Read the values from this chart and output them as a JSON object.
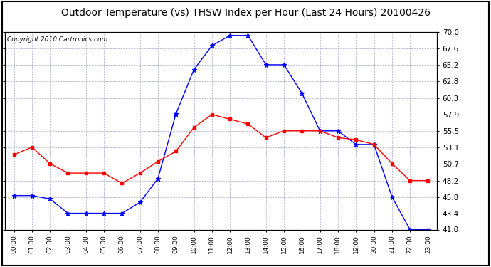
{
  "title": "Outdoor Temperature (vs) THSW Index per Hour (Last 24 Hours) 20100426",
  "copyright": "Copyright 2010 Cartronics.com",
  "hours": [
    "00:00",
    "01:00",
    "02:00",
    "03:00",
    "04:00",
    "05:00",
    "06:00",
    "07:00",
    "08:00",
    "09:00",
    "10:00",
    "11:00",
    "12:00",
    "13:00",
    "14:00",
    "15:00",
    "16:00",
    "17:00",
    "18:00",
    "19:00",
    "20:00",
    "21:00",
    "22:00",
    "23:00"
  ],
  "temp_red": [
    52.0,
    53.1,
    50.7,
    49.3,
    49.3,
    49.3,
    47.8,
    49.3,
    51.0,
    52.5,
    56.0,
    57.9,
    57.2,
    56.5,
    54.5,
    55.5,
    55.5,
    55.5,
    54.5,
    54.2,
    53.5,
    50.7,
    48.2,
    48.2
  ],
  "thsw_blue": [
    46.0,
    46.0,
    45.5,
    43.4,
    43.4,
    43.4,
    43.4,
    45.0,
    48.5,
    58.0,
    64.5,
    68.0,
    69.5,
    69.5,
    65.2,
    65.2,
    61.0,
    55.5,
    55.5,
    53.5,
    53.5,
    45.8,
    41.0,
    41.0
  ],
  "ylim_min": 41.0,
  "ylim_max": 70.0,
  "yticks": [
    41.0,
    43.4,
    45.8,
    48.2,
    50.7,
    53.1,
    55.5,
    57.9,
    60.3,
    62.8,
    65.2,
    67.6,
    70.0
  ],
  "red_color": "#ff0000",
  "blue_color": "#0000ff",
  "bg_color": "#ffffff",
  "grid_color": "#aaaacc",
  "title_fontsize": 10,
  "copyright_fontsize": 6.5
}
